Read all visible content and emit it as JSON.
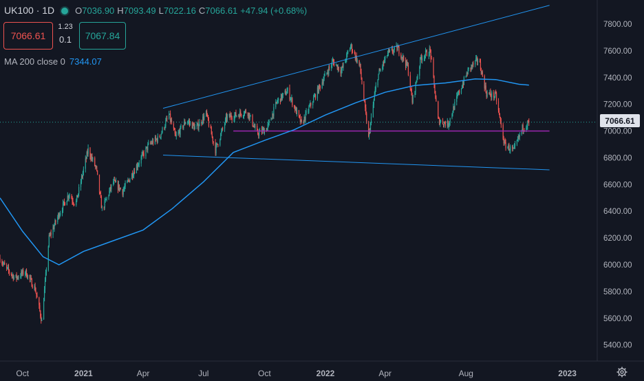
{
  "header": {
    "symbol": "UK100 · 1D",
    "open_label": "O",
    "open": "7036.90",
    "high_label": "H",
    "high": "7093.49",
    "low_label": "L",
    "low": "7022.16",
    "close_label": "C",
    "close": "7066.61",
    "change": "+47.94 (+0.68%)",
    "status_dot_color": "#26a69a"
  },
  "trade": {
    "sell_price": "7066.61",
    "spread_top": "1.23",
    "spread_bottom": "0.1",
    "buy_price": "7067.84"
  },
  "indicator": {
    "label": "MA 200 close 0",
    "value": "7344.07",
    "color": "#2196f3"
  },
  "last_price_tag": "7066.61",
  "settings_icon": "gear-icon",
  "chart_data": {
    "type": "candlestick",
    "title": "",
    "xlabel": "",
    "ylabel": "",
    "ylim": [
      5280,
      7980
    ],
    "yticks": [
      5400,
      5600,
      5800,
      6000,
      6200,
      6400,
      6600,
      6800,
      7000,
      7200,
      7400,
      7600,
      7800
    ],
    "ytick_labels": [
      "5400.00",
      "5600.00",
      "5800.00",
      "6000.00",
      "6200.00",
      "6400.00",
      "6600.00",
      "6800.00",
      "7000.00",
      "7200.00",
      "7400.00",
      "7600.00",
      "7800.00"
    ],
    "xlim": [
      "2020-08-28",
      "2023-02-15"
    ],
    "xticks": [
      {
        "date": "2020-10-01",
        "label": "Oct"
      },
      {
        "date": "2021-01-01",
        "label": "2021"
      },
      {
        "date": "2021-04-01",
        "label": "Apr"
      },
      {
        "date": "2021-07-01",
        "label": "Jul"
      },
      {
        "date": "2021-10-01",
        "label": "Oct"
      },
      {
        "date": "2022-01-01",
        "label": "2022"
      },
      {
        "date": "2022-04-01",
        "label": "Apr"
      },
      {
        "date": "2022-08-01",
        "label": "Aug"
      },
      {
        "date": "2023-01-01",
        "label": "2023"
      }
    ],
    "grid": false,
    "colors": {
      "up": "#26a69a",
      "down": "#ef5350",
      "ma": "#2196f3",
      "trendline": "#2196f3",
      "level": "#9c27b0",
      "background": "#131722"
    },
    "price_path": [
      {
        "date": "2020-08-28",
        "close": 6050
      },
      {
        "date": "2020-09-05",
        "close": 5980
      },
      {
        "date": "2020-09-20",
        "close": 5900
      },
      {
        "date": "2020-10-05",
        "close": 5950
      },
      {
        "date": "2020-10-20",
        "close": 5820
      },
      {
        "date": "2020-10-30",
        "close": 5580
      },
      {
        "date": "2020-11-10",
        "close": 6200
      },
      {
        "date": "2020-11-25",
        "close": 6380
      },
      {
        "date": "2020-12-10",
        "close": 6530
      },
      {
        "date": "2020-12-20",
        "close": 6450
      },
      {
        "date": "2021-01-08",
        "close": 6860
      },
      {
        "date": "2021-01-20",
        "close": 6720
      },
      {
        "date": "2021-01-29",
        "close": 6410
      },
      {
        "date": "2021-02-15",
        "close": 6620
      },
      {
        "date": "2021-03-01",
        "close": 6550
      },
      {
        "date": "2021-03-20",
        "close": 6720
      },
      {
        "date": "2021-04-10",
        "close": 6900
      },
      {
        "date": "2021-04-25",
        "close": 6950
      },
      {
        "date": "2021-05-10",
        "close": 7120
      },
      {
        "date": "2021-05-20",
        "close": 6950
      },
      {
        "date": "2021-06-05",
        "close": 7080
      },
      {
        "date": "2021-06-20",
        "close": 7020
      },
      {
        "date": "2021-07-05",
        "close": 7130
      },
      {
        "date": "2021-07-19",
        "close": 6860
      },
      {
        "date": "2021-08-05",
        "close": 7100
      },
      {
        "date": "2021-08-20",
        "close": 7120
      },
      {
        "date": "2021-09-05",
        "close": 7150
      },
      {
        "date": "2021-09-20",
        "close": 6980
      },
      {
        "date": "2021-10-05",
        "close": 7020
      },
      {
        "date": "2021-10-20",
        "close": 7220
      },
      {
        "date": "2021-11-05",
        "close": 7300
      },
      {
        "date": "2021-11-26",
        "close": 7050
      },
      {
        "date": "2021-12-10",
        "close": 7200
      },
      {
        "date": "2021-12-28",
        "close": 7380
      },
      {
        "date": "2022-01-12",
        "close": 7520
      },
      {
        "date": "2022-01-25",
        "close": 7450
      },
      {
        "date": "2022-02-08",
        "close": 7640
      },
      {
        "date": "2022-02-22",
        "close": 7480
      },
      {
        "date": "2022-03-07",
        "close": 6950
      },
      {
        "date": "2022-03-20",
        "close": 7400
      },
      {
        "date": "2022-04-05",
        "close": 7580
      },
      {
        "date": "2022-04-20",
        "close": 7620
      },
      {
        "date": "2022-05-05",
        "close": 7480
      },
      {
        "date": "2022-05-12",
        "close": 7220
      },
      {
        "date": "2022-05-25",
        "close": 7550
      },
      {
        "date": "2022-06-08",
        "close": 7600
      },
      {
        "date": "2022-06-20",
        "close": 7080
      },
      {
        "date": "2022-07-05",
        "close": 7050
      },
      {
        "date": "2022-07-20",
        "close": 7270
      },
      {
        "date": "2022-08-05",
        "close": 7460
      },
      {
        "date": "2022-08-20",
        "close": 7540
      },
      {
        "date": "2022-09-01",
        "close": 7280
      },
      {
        "date": "2022-09-15",
        "close": 7260
      },
      {
        "date": "2022-09-28",
        "close": 6900
      },
      {
        "date": "2022-10-12",
        "close": 6850
      },
      {
        "date": "2022-10-25",
        "close": 7020
      },
      {
        "date": "2022-11-04",
        "close": 7066.61
      }
    ],
    "series": [
      {
        "name": "MA 200 close 0",
        "type": "line",
        "points": [
          {
            "date": "2020-08-28",
            "value": 6500
          },
          {
            "date": "2020-10-01",
            "value": 6250
          },
          {
            "date": "2020-11-01",
            "value": 6060
          },
          {
            "date": "2020-11-25",
            "value": 6000
          },
          {
            "date": "2021-01-01",
            "value": 6100
          },
          {
            "date": "2021-02-15",
            "value": 6180
          },
          {
            "date": "2021-04-01",
            "value": 6260
          },
          {
            "date": "2021-05-15",
            "value": 6420
          },
          {
            "date": "2021-07-01",
            "value": 6620
          },
          {
            "date": "2021-08-15",
            "value": 6840
          },
          {
            "date": "2021-10-01",
            "value": 6930
          },
          {
            "date": "2021-11-15",
            "value": 7010
          },
          {
            "date": "2022-01-01",
            "value": 7120
          },
          {
            "date": "2022-02-15",
            "value": 7210
          },
          {
            "date": "2022-04-01",
            "value": 7290
          },
          {
            "date": "2022-05-15",
            "value": 7340
          },
          {
            "date": "2022-07-01",
            "value": 7360
          },
          {
            "date": "2022-08-15",
            "value": 7390
          },
          {
            "date": "2022-09-15",
            "value": 7385
          },
          {
            "date": "2022-10-20",
            "value": 7350
          },
          {
            "date": "2022-11-04",
            "value": 7344.07
          }
        ]
      }
    ],
    "drawings": [
      {
        "kind": "trendline",
        "from": {
          "date": "2021-05-01",
          "value": 7170
        },
        "to": {
          "date": "2022-12-05",
          "value": 7940
        }
      },
      {
        "kind": "trendline",
        "from": {
          "date": "2021-05-01",
          "value": 6820
        },
        "to": {
          "date": "2022-12-05",
          "value": 6710
        }
      },
      {
        "kind": "horizontal",
        "from": {
          "date": "2021-08-15",
          "value": 7000
        },
        "to": {
          "date": "2022-12-05",
          "value": 7000
        }
      }
    ],
    "last_price": 7066.61
  }
}
